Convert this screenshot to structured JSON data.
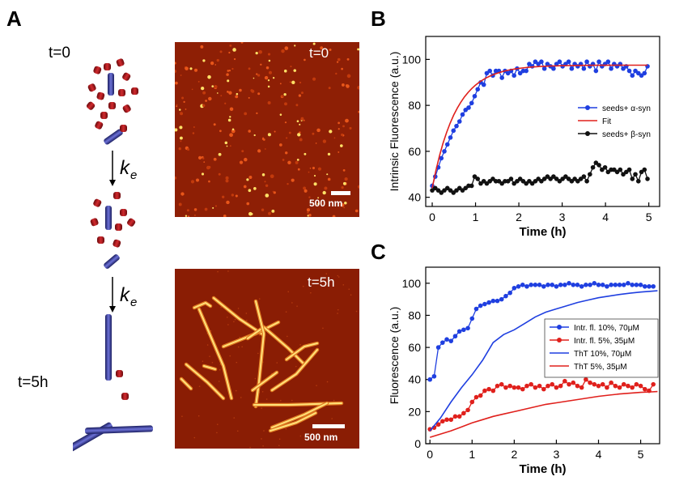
{
  "panels": {
    "a": "A",
    "b": "B",
    "c": "C"
  },
  "schematic": {
    "t0": "t=0",
    "t5": "t=5h",
    "rate_symbol": "k",
    "rate_subscript": "e",
    "colors": {
      "monomer": "#b01b1f",
      "seed": "#3b3fa8"
    }
  },
  "afm": [
    {
      "time_label": "t=0",
      "scale_bar": "500 nm"
    },
    {
      "time_label": "t=5h",
      "scale_bar": "500 nm"
    }
  ],
  "chart_data": [
    {
      "type": "line",
      "title": "",
      "xlabel": "Time (h)",
      "ylabel": "Intrinsic Fluorescence (a.u.)",
      "xlim": [
        -0.15,
        5.25
      ],
      "ylim": [
        36,
        110
      ],
      "xticks": [
        0,
        1,
        2,
        3,
        4,
        5
      ],
      "yticks": [
        40,
        60,
        80,
        100
      ],
      "legend_position": "right",
      "series": [
        {
          "name": "seeds+ α-syn",
          "color": "#1f3fe0",
          "marker": "circle",
          "line": true,
          "x": [
            0.0,
            0.07,
            0.14,
            0.21,
            0.28,
            0.35,
            0.42,
            0.49,
            0.56,
            0.63,
            0.7,
            0.77,
            0.84,
            0.91,
            0.98,
            1.05,
            1.12,
            1.19,
            1.26,
            1.33,
            1.4,
            1.47,
            1.54,
            1.61,
            1.68,
            1.75,
            1.82,
            1.89,
            1.96,
            2.03,
            2.1,
            2.17,
            2.24,
            2.31,
            2.38,
            2.45,
            2.52,
            2.59,
            2.66,
            2.73,
            2.8,
            2.87,
            2.94,
            3.01,
            3.08,
            3.15,
            3.22,
            3.29,
            3.36,
            3.43,
            3.5,
            3.57,
            3.64,
            3.71,
            3.78,
            3.85,
            3.92,
            3.99,
            4.06,
            4.13,
            4.2,
            4.27,
            4.34,
            4.41,
            4.48,
            4.55,
            4.62,
            4.69,
            4.76,
            4.83,
            4.9,
            4.97
          ],
          "values": [
            45,
            49,
            53,
            57,
            60,
            63,
            66,
            69,
            71,
            73,
            76,
            78,
            79,
            81,
            84,
            87,
            90,
            89,
            94,
            95,
            93,
            95,
            95,
            92,
            95,
            94,
            95,
            93,
            96,
            94,
            95,
            95,
            98,
            97,
            99,
            98,
            99,
            96,
            98,
            97,
            96,
            98,
            99,
            97,
            98,
            99,
            96,
            98,
            97,
            98,
            96,
            99,
            97,
            98,
            95,
            99,
            97,
            98,
            99,
            96,
            98,
            97,
            98,
            96,
            97,
            95,
            93,
            95,
            94,
            93,
            94,
            97
          ]
        },
        {
          "name": "Fit",
          "color": "#e0201c",
          "marker": "none",
          "line": true,
          "fit": {
            "model": "exponential",
            "y0": 44,
            "ymax": 97.5,
            "tau": 0.55,
            "xrange": [
              0,
              4.97
            ]
          }
        },
        {
          "name": "seeds+ β-syn",
          "color": "#111111",
          "marker": "circle",
          "line": true,
          "x": [
            0.0,
            0.07,
            0.14,
            0.21,
            0.28,
            0.35,
            0.42,
            0.49,
            0.56,
            0.63,
            0.7,
            0.77,
            0.84,
            0.91,
            0.98,
            1.05,
            1.12,
            1.19,
            1.26,
            1.33,
            1.4,
            1.47,
            1.54,
            1.61,
            1.68,
            1.75,
            1.82,
            1.89,
            1.96,
            2.03,
            2.1,
            2.17,
            2.24,
            2.31,
            2.38,
            2.45,
            2.52,
            2.59,
            2.66,
            2.73,
            2.8,
            2.87,
            2.94,
            3.01,
            3.08,
            3.15,
            3.22,
            3.29,
            3.36,
            3.43,
            3.5,
            3.57,
            3.64,
            3.71,
            3.78,
            3.85,
            3.92,
            3.99,
            4.06,
            4.13,
            4.2,
            4.27,
            4.34,
            4.41,
            4.48,
            4.55,
            4.62,
            4.69,
            4.76,
            4.83,
            4.9,
            4.97
          ],
          "values": [
            43,
            44,
            43,
            42,
            43,
            44,
            43,
            42,
            43,
            44,
            43,
            44,
            45,
            45,
            49,
            48,
            46,
            47,
            46,
            47,
            48,
            47,
            47,
            46,
            47,
            47,
            48,
            46,
            47,
            48,
            47,
            46,
            47,
            46,
            47,
            48,
            47,
            48,
            49,
            48,
            49,
            48,
            47,
            48,
            49,
            48,
            47,
            48,
            47,
            48,
            49,
            47,
            50,
            53,
            55,
            54,
            52,
            53,
            51,
            52,
            52,
            51,
            52,
            50,
            51,
            52,
            48,
            50,
            47,
            51,
            52,
            48
          ]
        }
      ]
    },
    {
      "type": "line",
      "title": "",
      "xlabel": "Time (h)",
      "ylabel": "Fluorescence (a.u.)",
      "xlim": [
        -0.1,
        5.45
      ],
      "ylim": [
        0,
        110
      ],
      "xticks": [
        0,
        1,
        2,
        3,
        4,
        5
      ],
      "yticks": [
        0,
        20,
        40,
        60,
        80,
        100
      ],
      "legend_position": "lower-right",
      "series": [
        {
          "name": "Intr. fl. 10%, 70μM",
          "color": "#1f3fe0",
          "marker": "circle",
          "line": true,
          "x": [
            0.0,
            0.1,
            0.2,
            0.3,
            0.4,
            0.5,
            0.6,
            0.7,
            0.8,
            0.9,
            1.0,
            1.1,
            1.2,
            1.3,
            1.4,
            1.5,
            1.6,
            1.7,
            1.8,
            1.9,
            2.0,
            2.1,
            2.2,
            2.3,
            2.4,
            2.5,
            2.6,
            2.7,
            2.8,
            2.9,
            3.0,
            3.1,
            3.2,
            3.3,
            3.4,
            3.5,
            3.6,
            3.7,
            3.8,
            3.9,
            4.0,
            4.1,
            4.2,
            4.3,
            4.4,
            4.5,
            4.6,
            4.7,
            4.8,
            4.9,
            5.0,
            5.1,
            5.2,
            5.3
          ],
          "values": [
            40,
            42,
            60,
            63,
            65,
            64,
            67,
            70,
            71,
            72,
            78,
            84,
            86,
            87,
            88,
            89,
            89,
            90,
            92,
            94,
            97,
            98,
            99,
            98,
            99,
            99,
            99,
            98,
            99,
            99,
            98,
            99,
            99,
            100,
            99,
            99,
            98,
            99,
            99,
            100,
            99,
            99,
            98,
            99,
            99,
            99,
            99,
            100,
            99,
            99,
            99,
            98,
            98,
            98
          ]
        },
        {
          "name": "Intr. fl. 5%, 35μM",
          "color": "#e0201c",
          "marker": "circle",
          "line": true,
          "x": [
            0.0,
            0.1,
            0.2,
            0.3,
            0.4,
            0.5,
            0.6,
            0.7,
            0.8,
            0.9,
            1.0,
            1.1,
            1.2,
            1.3,
            1.4,
            1.5,
            1.6,
            1.7,
            1.8,
            1.9,
            2.0,
            2.1,
            2.2,
            2.3,
            2.4,
            2.5,
            2.6,
            2.7,
            2.8,
            2.9,
            3.0,
            3.1,
            3.2,
            3.3,
            3.4,
            3.5,
            3.6,
            3.7,
            3.8,
            3.9,
            4.0,
            4.1,
            4.2,
            4.3,
            4.4,
            4.5,
            4.6,
            4.7,
            4.8,
            4.9,
            5.0,
            5.1,
            5.2,
            5.3
          ],
          "values": [
            9,
            10,
            12,
            14,
            15,
            15,
            17,
            17,
            19,
            21,
            26,
            29,
            30,
            33,
            34,
            33,
            36,
            37,
            35,
            36,
            35,
            35,
            34,
            36,
            37,
            35,
            36,
            34,
            36,
            37,
            35,
            36,
            39,
            37,
            38,
            36,
            35,
            40,
            38,
            37,
            36,
            37,
            35,
            38,
            36,
            35,
            37,
            36,
            35,
            37,
            36,
            34,
            33,
            37
          ]
        },
        {
          "name": "ThT 10%, 70μM",
          "color": "#1f3fe0",
          "marker": "none",
          "line": true,
          "x": [
            0.0,
            0.25,
            0.5,
            0.75,
            1.0,
            1.25,
            1.5,
            1.75,
            2.0,
            2.25,
            2.5,
            2.75,
            3.0,
            3.25,
            3.5,
            3.75,
            4.0,
            4.25,
            4.5,
            4.75,
            5.0,
            5.25,
            5.4
          ],
          "values": [
            8,
            16,
            26,
            35,
            43,
            52,
            63,
            68,
            71,
            75,
            79,
            82,
            84,
            86,
            88,
            89.5,
            91,
            92,
            93,
            93.8,
            94.5,
            95,
            95.3
          ]
        },
        {
          "name": "ThT 5%, 35μM",
          "color": "#e0201c",
          "marker": "none",
          "line": true,
          "x": [
            0.0,
            0.25,
            0.5,
            0.75,
            1.0,
            1.25,
            1.5,
            1.75,
            2.0,
            2.25,
            2.5,
            2.75,
            3.0,
            3.25,
            3.5,
            3.75,
            4.0,
            4.25,
            4.5,
            4.75,
            5.0,
            5.25,
            5.4
          ],
          "values": [
            4,
            6,
            8,
            10.5,
            13,
            15,
            17,
            18.5,
            20,
            21.5,
            23,
            24.5,
            25.5,
            26.5,
            27.5,
            28.5,
            29.5,
            30.3,
            31,
            31.5,
            32,
            32.3,
            32.5
          ]
        }
      ]
    }
  ]
}
